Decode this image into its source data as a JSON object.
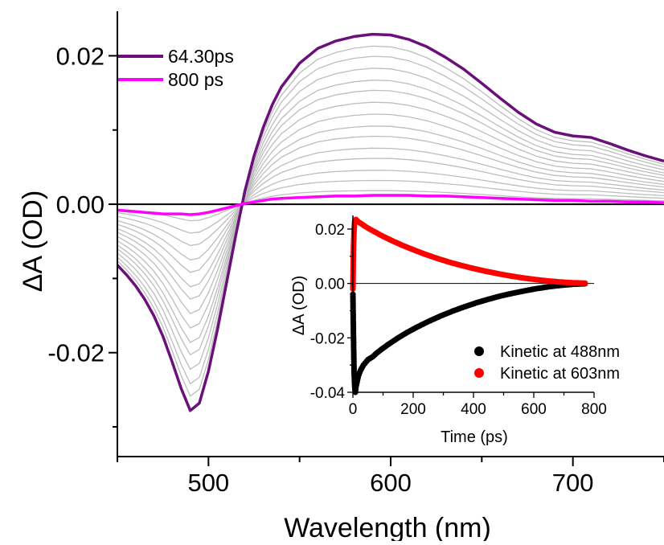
{
  "chart_data": [
    {
      "type": "line",
      "xlabel": "Wavelength (nm)",
      "ylabel": "ΔA (OD)",
      "xlim": [
        450,
        750
      ],
      "ylim": [
        -0.034,
        0.026
      ],
      "x_ticks": [
        500,
        600,
        700
      ],
      "x_tick_labels": [
        "500",
        "600",
        "700"
      ],
      "y_ticks": [
        -0.02,
        0.0,
        0.02
      ],
      "y_tick_labels": [
        "-0.02",
        "0.00",
        "0.02"
      ],
      "zero_line": true,
      "grid": false,
      "legend_position": "top-left",
      "x": [
        450,
        455,
        460,
        465,
        470,
        475,
        480,
        485,
        490,
        495,
        500,
        505,
        510,
        515,
        520,
        525,
        530,
        535,
        540,
        550,
        560,
        570,
        580,
        590,
        600,
        610,
        620,
        630,
        640,
        650,
        660,
        670,
        680,
        690,
        700,
        710,
        720,
        730,
        740,
        750
      ],
      "series": [
        {
          "name": "64.30ps",
          "color": "#6b0f7a",
          "values": [
            -0.0082,
            -0.0095,
            -0.011,
            -0.0128,
            -0.015,
            -0.0178,
            -0.0212,
            -0.0248,
            -0.0278,
            -0.0268,
            -0.0225,
            -0.0168,
            -0.0105,
            -0.0042,
            0.0018,
            0.0065,
            0.0103,
            0.0134,
            0.0158,
            0.019,
            0.021,
            0.022,
            0.0226,
            0.0229,
            0.0228,
            0.0222,
            0.0212,
            0.0198,
            0.0182,
            0.0163,
            0.0143,
            0.0124,
            0.0108,
            0.0097,
            0.0092,
            0.009,
            0.0082,
            0.0073,
            0.0065,
            0.0058
          ]
        },
        {
          "name": "800 ps",
          "color": "#ff00ff",
          "values": [
            -0.0008,
            -0.0009,
            -0.001,
            -0.0011,
            -0.0012,
            -0.0013,
            -0.0013,
            -0.0013,
            -0.0014,
            -0.0013,
            -0.0011,
            -0.0008,
            -0.0005,
            -0.0002,
            0.0001,
            0.0003,
            0.0005,
            0.0007,
            0.0008,
            0.0009,
            0.001,
            0.0011,
            0.0011,
            0.0012,
            0.0012,
            0.0012,
            0.0011,
            0.0011,
            0.001,
            0.0009,
            0.0008,
            0.0007,
            0.0006,
            0.0005,
            0.0005,
            0.0004,
            0.0004,
            0.0003,
            0.0003,
            0.0002
          ]
        }
      ],
      "gray_series": {
        "color": "#bdbdbd",
        "scales": [
          0.93,
          0.87,
          0.8,
          0.73,
          0.67,
          0.6,
          0.53,
          0.46,
          0.4,
          0.33,
          0.27,
          0.2,
          0.14,
          0.08
        ]
      },
      "inset": {
        "type": "scatter",
        "xlabel": "Time (ps)",
        "ylabel": "ΔA (OD)",
        "xlim": [
          0,
          800
        ],
        "ylim": [
          -0.04,
          0.025
        ],
        "x_ticks": [
          0,
          200,
          400,
          600,
          800
        ],
        "x_tick_labels": [
          "0",
          "200",
          "400",
          "600",
          "800"
        ],
        "y_ticks": [
          -0.04,
          -0.02,
          0.0,
          0.02
        ],
        "y_tick_labels": [
          "-0.04",
          "-0.02",
          "0.00",
          "0.02"
        ],
        "zero_line": true,
        "legend_position": "bottom-right",
        "series": [
          {
            "name": "Kinetic at  488nm",
            "color": "#000000",
            "x": [
              0,
              2,
              4,
              6,
              8,
              10,
              14,
              18,
              25,
              35,
              50,
              65,
              80,
              100,
              120,
              150,
              180,
              210,
              250,
              290,
              330,
              370,
              410,
              450,
              490,
              530,
              570,
              610,
              650,
              690,
              730,
              770
            ],
            "y": [
              -0.004,
              -0.02,
              -0.033,
              -0.038,
              -0.04,
              -0.038,
              -0.036,
              -0.034,
              -0.032,
              -0.03,
              -0.028,
              -0.027,
              -0.0255,
              -0.0238,
              -0.0222,
              -0.02,
              -0.018,
              -0.0162,
              -0.014,
              -0.012,
              -0.0102,
              -0.0086,
              -0.0071,
              -0.0058,
              -0.0046,
              -0.0036,
              -0.0027,
              -0.0019,
              -0.0012,
              -0.0007,
              -0.0003,
              -0.0001
            ]
          },
          {
            "name": "Kinetic at  603nm",
            "color": "#ff0000",
            "x": [
              0,
              1,
              2,
              4,
              6,
              10,
              15,
              20,
              30,
              40,
              60,
              80,
              100,
              130,
              160,
              200,
              240,
              280,
              320,
              360,
              400,
              440,
              480,
              520,
              560,
              600,
              640,
              680,
              720,
              770
            ],
            "y": [
              -0.002,
              0.006,
              0.014,
              0.02,
              0.023,
              0.0235,
              0.023,
              0.0225,
              0.0218,
              0.021,
              0.0197,
              0.0185,
              0.0173,
              0.0157,
              0.0142,
              0.0124,
              0.0107,
              0.0092,
              0.0078,
              0.0066,
              0.0055,
              0.0045,
              0.0036,
              0.0028,
              0.0021,
              0.0015,
              0.001,
              0.0006,
              0.0003,
              0.0001
            ]
          }
        ]
      }
    }
  ]
}
